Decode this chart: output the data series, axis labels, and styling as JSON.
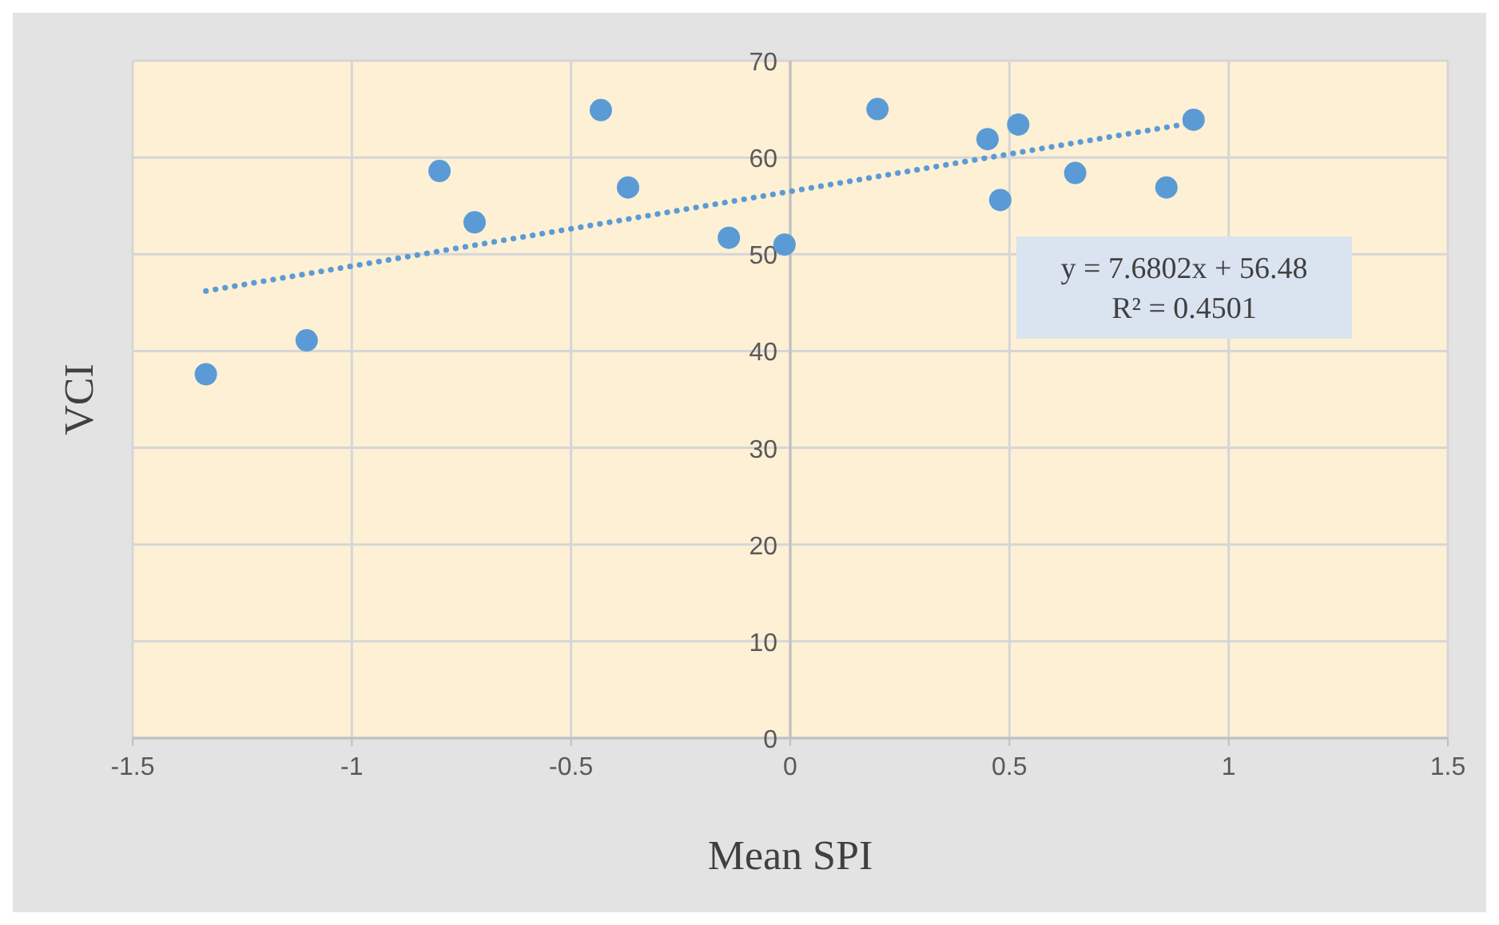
{
  "chart_data": {
    "type": "scatter",
    "xlabel": "Mean SPI",
    "ylabel": "VCI",
    "xlim": [
      -1.5,
      1.5
    ],
    "xticks": [
      -1.5,
      -1,
      -0.5,
      0,
      0.5,
      1,
      1.5
    ],
    "ylim": [
      0,
      70
    ],
    "yticks": [
      0,
      10,
      20,
      30,
      40,
      50,
      60,
      70
    ],
    "grid": true,
    "series": [
      {
        "color": "#5b9bd5",
        "marker": "circle",
        "x": [
          -1.333,
          -1.103,
          -0.8,
          -0.72,
          -0.432,
          -0.37,
          -0.14,
          -0.013,
          0.199,
          0.45,
          0.479,
          0.52,
          0.65,
          0.858,
          0.92
        ],
        "values": [
          37.6,
          41.1,
          58.6,
          53.3,
          64.9,
          56.9,
          51.7,
          51.0,
          65.0,
          61.9,
          55.6,
          63.4,
          58.4,
          56.9,
          63.9
        ]
      },
      {
        "type": "line",
        "color": "#5b9bd5",
        "line_style": "dotted",
        "x": [
          -1.333,
          0.92
        ],
        "values": [
          46.2,
          63.6
        ]
      }
    ],
    "annotations": [
      "y = 7.6802x + 56.48",
      "R² = 0.4501"
    ]
  }
}
